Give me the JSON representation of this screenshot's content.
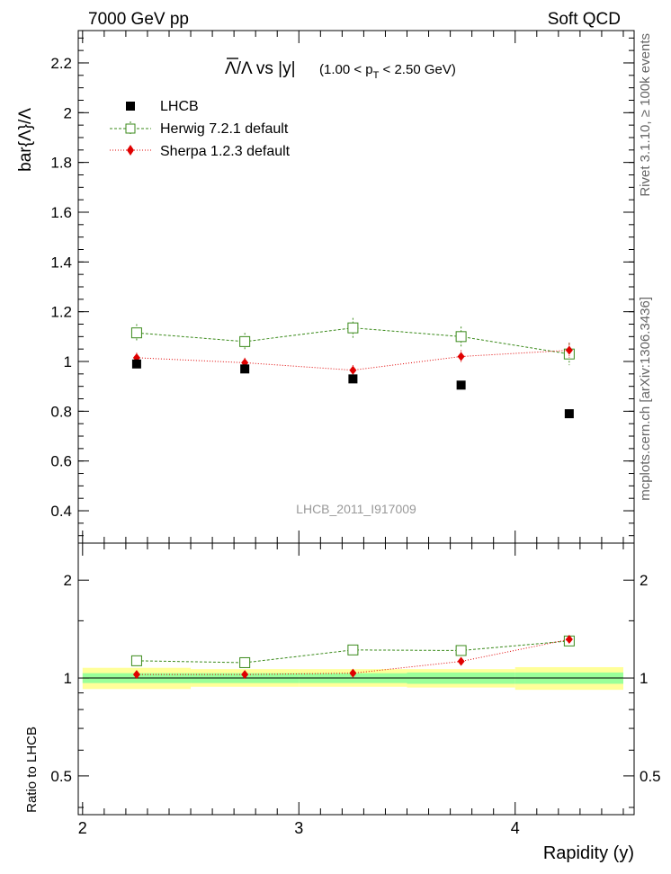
{
  "header": {
    "left": "7000 GeV pp",
    "right": "Soft QCD"
  },
  "side": {
    "rivet": "Rivet 3.1.10, ≥ 100k events",
    "mcplots": "mcplots.cern.ch [arXiv:1306.3436]"
  },
  "analysis_id": "LHCB_2011_I917009",
  "chart_data": [
    {
      "panel": "main",
      "type": "scatter",
      "title_main": "Λ/Λ vs |y|",
      "title_overline_symbol": "Λ",
      "title_kin": "(1.00 < p",
      "title_kin_sub": "T",
      "title_kin_tail": " < 2.50 GeV)",
      "ylabel": "bar{Λ}/Λ",
      "xlim": [
        1.98,
        4.55
      ],
      "ylim": [
        0.27,
        2.33
      ],
      "yticks": [
        0.4,
        0.6,
        0.8,
        1.0,
        1.2,
        1.4,
        1.6,
        1.8,
        2.0,
        2.2
      ],
      "ytick_labels": [
        "0.4",
        "0.6",
        "0.8",
        "1",
        "1.2",
        "1.4",
        "1.6",
        "1.8",
        "2",
        "2.2"
      ],
      "legend": [
        {
          "name": "LHCB",
          "color": "#000000"
        },
        {
          "name": "Herwig 7.2.1 default",
          "color": "#3a8a1a"
        },
        {
          "name": "Sherpa 1.2.3 default",
          "color": "#e00000"
        }
      ],
      "series": [
        {
          "name": "LHCB",
          "x": [
            2.25,
            2.75,
            3.25,
            3.75,
            4.25
          ],
          "y": [
            0.99,
            0.97,
            0.93,
            0.905,
            0.79
          ],
          "err": [
            0.01,
            0.01,
            0.01,
            0.01,
            0.01
          ]
        },
        {
          "name": "Herwig 7.2.1 default",
          "x": [
            2.25,
            2.75,
            3.25,
            3.75,
            4.25
          ],
          "y": [
            1.115,
            1.08,
            1.135,
            1.1,
            1.03
          ],
          "err": [
            0.035,
            0.035,
            0.04,
            0.04,
            0.045
          ]
        },
        {
          "name": "Sherpa 1.2.3 default",
          "x": [
            2.25,
            2.75,
            3.25,
            3.75,
            4.25
          ],
          "y": [
            1.015,
            0.995,
            0.965,
            1.02,
            1.045
          ],
          "err": [
            0.02,
            0.02,
            0.02,
            0.025,
            0.03
          ]
        }
      ]
    },
    {
      "panel": "ratio",
      "type": "line",
      "ylabel": "Ratio to LHCB",
      "xlabel": "Rapidity (y)",
      "xlim": [
        1.98,
        4.55
      ],
      "ylim": [
        0.38,
        2.6
      ],
      "log_y": true,
      "xticks": [
        2,
        3,
        4
      ],
      "xtick_labels": [
        "2",
        "3",
        "4"
      ],
      "yticks": [
        0.5,
        1,
        2
      ],
      "ytick_labels": [
        "0.5",
        "1",
        "2"
      ],
      "bands": [
        {
          "x0": 2.0,
          "x1": 2.5,
          "inner": [
            0.965,
            1.035
          ],
          "outer": [
            0.925,
            1.075
          ]
        },
        {
          "x0": 2.5,
          "x1": 3.0,
          "inner": [
            0.965,
            1.035
          ],
          "outer": [
            0.94,
            1.065
          ]
        },
        {
          "x0": 3.0,
          "x1": 3.5,
          "inner": [
            0.965,
            1.035
          ],
          "outer": [
            0.94,
            1.065
          ]
        },
        {
          "x0": 3.5,
          "x1": 4.0,
          "inner": [
            0.96,
            1.04
          ],
          "outer": [
            0.935,
            1.065
          ]
        },
        {
          "x0": 4.0,
          "x1": 4.5,
          "inner": [
            0.96,
            1.04
          ],
          "outer": [
            0.92,
            1.08
          ]
        }
      ],
      "series": [
        {
          "name": "Herwig 7.2.1 default",
          "x": [
            2.25,
            2.75,
            3.25,
            3.75,
            4.25
          ],
          "y": [
            1.13,
            1.115,
            1.22,
            1.215,
            1.3
          ],
          "err": [
            0.035,
            0.035,
            0.04,
            0.04,
            0.045
          ]
        },
        {
          "name": "Sherpa 1.2.3 default",
          "x": [
            2.25,
            2.75,
            3.25,
            3.75,
            4.25
          ],
          "y": [
            1.025,
            1.025,
            1.035,
            1.125,
            1.315
          ],
          "err": [
            0.02,
            0.02,
            0.02,
            0.025,
            0.03
          ]
        }
      ]
    }
  ]
}
